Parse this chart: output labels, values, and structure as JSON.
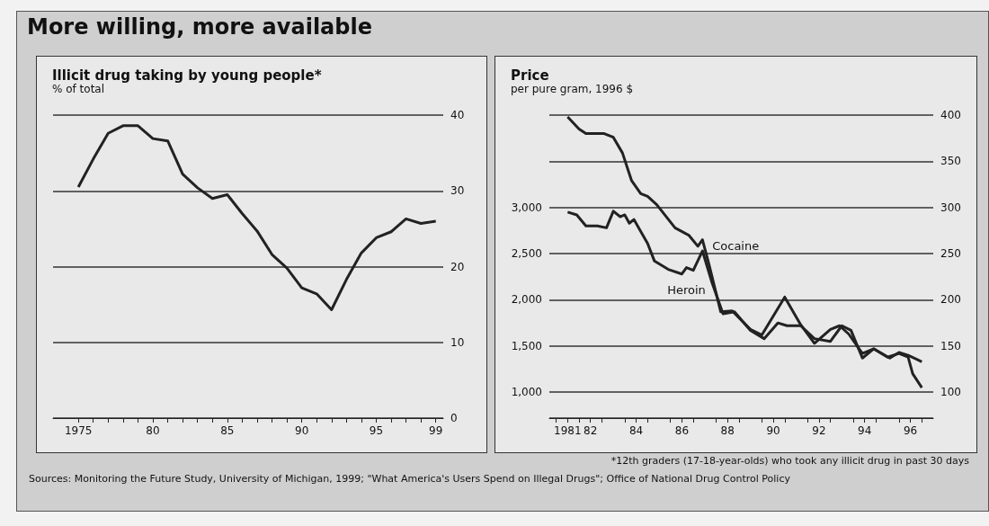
{
  "chart_data": [
    {
      "type": "line",
      "title": "Illicit drug taking by young people*",
      "subtitle": "% of total",
      "annotations": [
        "More willing, more available"
      ],
      "xlim": [
        1973.3,
        1999.5
      ],
      "xticks": [
        1975,
        {
          "value": 1976,
          "label": null
        },
        {
          "value": 1977,
          "label": null
        },
        {
          "value": 1978,
          "label": null
        },
        {
          "value": 1979,
          "label": null
        },
        {
          "value": 1980,
          "label": "80"
        },
        {
          "value": 1981,
          "label": null
        },
        {
          "value": 1982,
          "label": null
        },
        {
          "value": 1983,
          "label": null
        },
        {
          "value": 1984,
          "label": null
        },
        {
          "value": 1985,
          "label": "85"
        },
        {
          "value": 1986,
          "label": null
        },
        {
          "value": 1987,
          "label": null
        },
        {
          "value": 1988,
          "label": null
        },
        {
          "value": 1989,
          "label": null
        },
        {
          "value": 1990,
          "label": "90"
        },
        {
          "value": 1991,
          "label": null
        },
        {
          "value": 1992,
          "label": null
        },
        {
          "value": 1993,
          "label": null
        },
        {
          "value": 1994,
          "label": null
        },
        {
          "value": 1995,
          "label": "95"
        },
        {
          "value": 1996,
          "label": null
        },
        {
          "value": 1997,
          "label": null
        },
        {
          "value": 1998,
          "label": null
        },
        {
          "value": 1999,
          "label": "99"
        }
      ],
      "ylim": [
        0,
        40
      ],
      "yticks": [
        0,
        10,
        20,
        30,
        40
      ],
      "grid": "y",
      "series": [
        {
          "color": "#222222",
          "x": [
            1975,
            1976,
            1977,
            1978,
            1979,
            1980,
            1981,
            1982,
            1983,
            1984,
            1985,
            1986,
            1987,
            1988,
            1989,
            1990,
            1991,
            1992,
            1993,
            1994,
            1995,
            1996,
            1997,
            1998,
            1999
          ],
          "values": [
            30.5,
            34.2,
            37.6,
            38.6,
            38.6,
            36.9,
            36.6,
            32.2,
            30.4,
            29,
            29.5,
            27,
            24.7,
            21.6,
            19.8,
            17.2,
            16.4,
            14.3,
            18.3,
            21.8,
            23.8,
            24.6,
            26.3,
            25.7,
            26
          ]
        }
      ]
    },
    {
      "type": "line",
      "title": "Price",
      "subtitle": "per pure gram, 1996 $",
      "annotations": [
        "*12th graders (17-18-year-olds) who took any illicit drug in past 30 days",
        "Sources: Monitoring the Future Study, University of Michigan, 1999; \"What America's Users Spend on Illegal Drugs\"; Office of National Drug Control Policy"
      ],
      "xlim": [
        1980.2,
        1997
      ],
      "xticks": [
        {
          "value": 1980.5,
          "label": null
        },
        {
          "value": 1981,
          "label": "1981"
        },
        {
          "value": 1981.5,
          "label": null
        },
        {
          "value": 1982,
          "label": "82"
        },
        {
          "value": 1982.5,
          "label": null
        },
        {
          "value": 1983.5,
          "label": null
        },
        {
          "value": 1984,
          "label": "84"
        },
        {
          "value": 1984.5,
          "label": null
        },
        {
          "value": 1985.5,
          "label": null
        },
        {
          "value": 1986,
          "label": "86"
        },
        {
          "value": 1986.5,
          "label": null
        },
        {
          "value": 1987.5,
          "label": null
        },
        {
          "value": 1988,
          "label": "88"
        },
        {
          "value": 1988.5,
          "label": null
        },
        {
          "value": 1989.5,
          "label": null
        },
        {
          "value": 1990,
          "label": "90"
        },
        {
          "value": 1990.5,
          "label": null
        },
        {
          "value": 1991.5,
          "label": null
        },
        {
          "value": 1992,
          "label": "92"
        },
        {
          "value": 1992.5,
          "label": null
        },
        {
          "value": 1993.5,
          "label": null
        },
        {
          "value": 1994,
          "label": "94"
        },
        {
          "value": 1994.5,
          "label": null
        },
        {
          "value": 1995.5,
          "label": null
        },
        {
          "value": 1996,
          "label": "96"
        },
        {
          "value": 1996.5,
          "label": null
        }
      ],
      "ylim": [
        720,
        4000
      ],
      "yticks": [
        {
          "value": 1000,
          "label": "1,000"
        },
        {
          "value": 1500,
          "label": "1,500"
        },
        {
          "value": 2000,
          "label": "2,000"
        },
        {
          "value": 2500,
          "label": "2,500"
        },
        {
          "value": 3000,
          "label": "3,000"
        }
      ],
      "y2lim": [
        72,
        400
      ],
      "y2ticks": [
        100,
        150,
        200,
        250,
        300,
        350,
        400
      ],
      "grid": "y",
      "series": [
        {
          "name": "Cocaine",
          "color": "#222222",
          "axis": "y2",
          "x": [
            1981,
            1981.5,
            1981.8,
            1982.6,
            1983,
            1983.4,
            1983.8,
            1984.2,
            1984.5,
            1984.9,
            1985.7,
            1986.3,
            1986.7,
            1986.9,
            1987.2,
            1987.7,
            1988.2,
            1989,
            1989.5,
            1990.5,
            1991.2,
            1991.8,
            1992.5,
            1992.9,
            1993.3,
            1993.9,
            1994.4,
            1995,
            1995.5,
            1995.9,
            1996.1,
            1996.5
          ],
          "values": [
            398,
            385,
            380,
            380,
            376,
            359,
            329,
            315,
            312,
            303,
            278,
            270,
            258,
            265,
            237,
            187,
            188,
            168,
            162,
            203,
            173,
            153,
            168,
            172,
            163,
            142,
            147,
            138,
            142,
            138,
            120,
            105
          ]
        },
        {
          "name": "Heroin",
          "color": "#222222",
          "x": [
            1981,
            1981.4,
            1981.8,
            1982.3,
            1982.7,
            1983,
            1983.3,
            1983.5,
            1983.7,
            1983.9,
            1984.5,
            1984.8,
            1985.4,
            1986,
            1986.2,
            1986.5,
            1986.9,
            1987.3,
            1987.8,
            1988.3,
            1989,
            1989.6,
            1990.2,
            1990.6,
            1991.2,
            1991.8,
            1992.5,
            1993,
            1993.4,
            1993.9,
            1994.4,
            1995.1,
            1995.5,
            1995.9,
            1996.5
          ],
          "values": [
            2950,
            2920,
            2800,
            2800,
            2780,
            2960,
            2900,
            2920,
            2830,
            2870,
            2610,
            2420,
            2330,
            2280,
            2350,
            2320,
            2530,
            2200,
            1850,
            1870,
            1670,
            1580,
            1750,
            1720,
            1720,
            1580,
            1550,
            1720,
            1670,
            1370,
            1470,
            1370,
            1430,
            1400,
            1330
          ]
        }
      ]
    }
  ]
}
